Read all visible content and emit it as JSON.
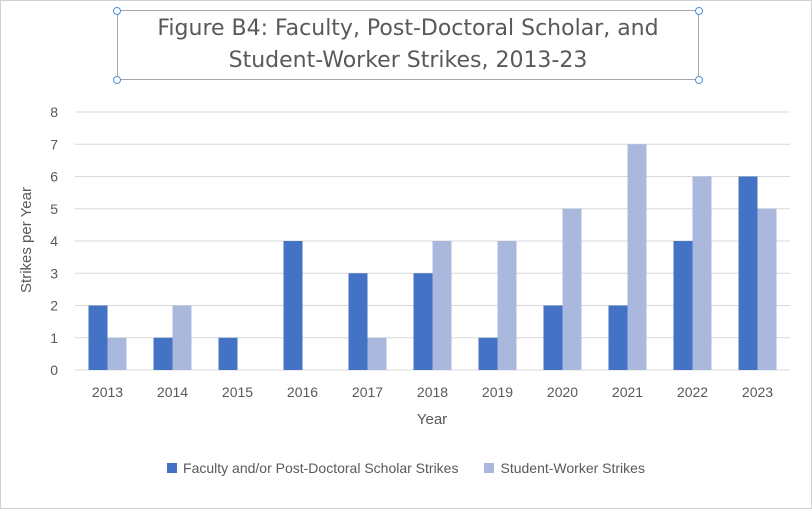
{
  "chart_data": {
    "type": "bar",
    "title": "Figure B4: Faculty, Post-Doctoral Scholar, and Student-Worker Strikes, 2013-23",
    "xlabel": "Year",
    "ylabel": "Strikes per Year",
    "categories": [
      "2013",
      "2014",
      "2015",
      "2016",
      "2017",
      "2018",
      "2019",
      "2020",
      "2021",
      "2022",
      "2023"
    ],
    "series": [
      {
        "name": "Faculty and/or Post-Doctoral Scholar Strikes",
        "color": "#4472c4",
        "values": [
          2,
          1,
          1,
          4,
          3,
          3,
          1,
          2,
          2,
          4,
          6
        ]
      },
      {
        "name": "Student-Worker Strikes",
        "color": "#a9b8dc",
        "values": [
          1,
          2,
          0,
          0,
          1,
          4,
          4,
          5,
          7,
          6,
          5
        ]
      }
    ],
    "ylim": [
      0,
      8
    ],
    "yticks": [
      0,
      1,
      2,
      3,
      4,
      5,
      6,
      7,
      8
    ],
    "grid": true,
    "legend_position": "bottom",
    "gridline_color": "#d9d9d9"
  }
}
